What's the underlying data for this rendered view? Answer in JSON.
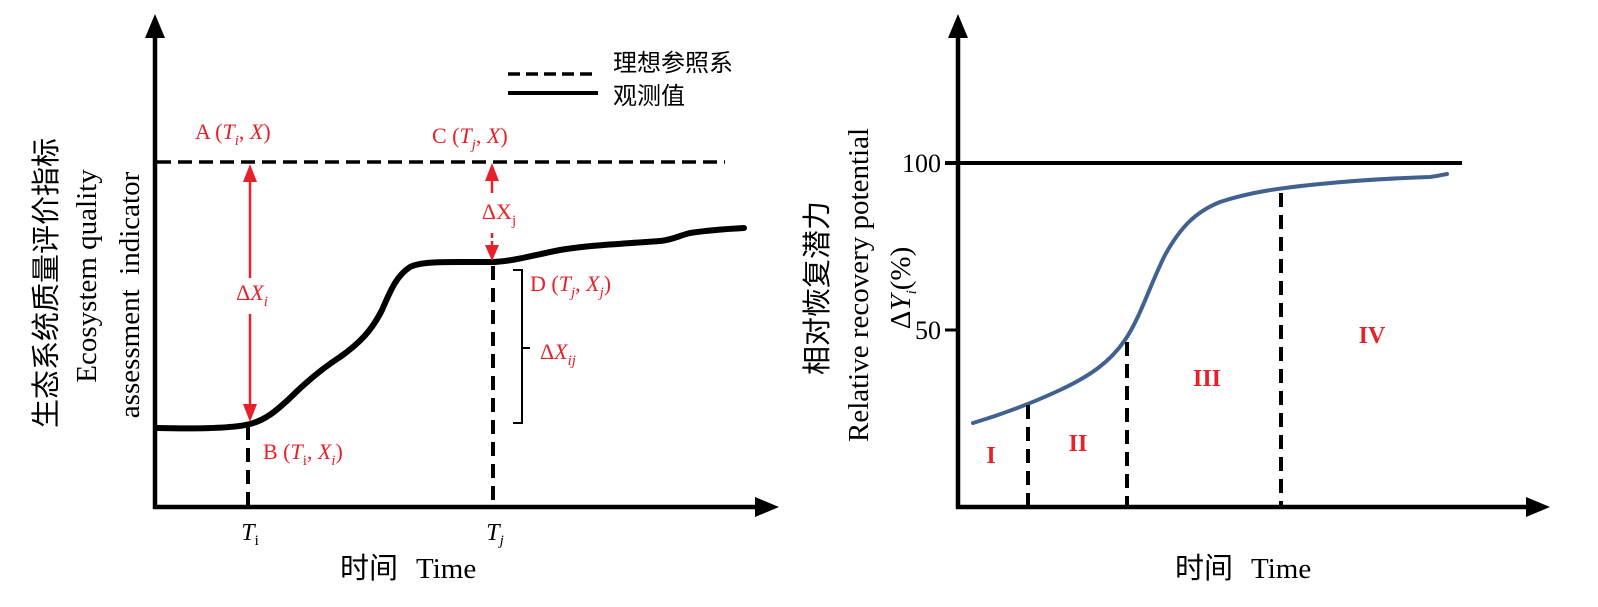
{
  "colors": {
    "annotation_red": "#e8202a",
    "recovery_curve_blue": "#41618e",
    "ink": "#000000"
  },
  "left_panel": {
    "y_axis_title_zh": "生态系统质量评价指标",
    "y_axis_title_en_line1": "Ecosystem quality",
    "y_axis_title_en_line2": "assessment  indicator",
    "x_axis_title_zh": "时间",
    "x_axis_title_en": "Time",
    "legend": {
      "reference": "理想参照系",
      "observed": "观测值"
    },
    "point_a": [
      "A (",
      "T",
      "i",
      ", ",
      "X",
      ")"
    ],
    "point_b": [
      "B (",
      "T",
      "i",
      ", ",
      "X",
      "i",
      ")"
    ],
    "point_c": [
      "C (",
      "T",
      "j",
      ", ",
      "X",
      ")"
    ],
    "point_d": [
      "D (",
      "T",
      "j",
      ", ",
      "X",
      "j",
      ")"
    ],
    "delta_x_i": [
      "Δ",
      "X",
      "i"
    ],
    "delta_x_j": [
      "ΔX",
      "j"
    ],
    "delta_x_ij": [
      "Δ",
      "X",
      "ij"
    ],
    "tick_t_i": [
      "T",
      "i"
    ],
    "tick_t_j": [
      "T",
      "j"
    ]
  },
  "right_panel": {
    "y_axis_title_zh": "相对恢复潜力",
    "y_axis_title_en": "Relative recovery potential",
    "y_axis_unit": [
      "Δ",
      "Y",
      "i",
      "(%)"
    ],
    "y_ticks": [
      "100",
      "50"
    ],
    "x_axis_title_zh": "时间",
    "x_axis_title_en": "Time",
    "stages": [
      "I",
      "II",
      "III",
      "IV"
    ]
  }
}
